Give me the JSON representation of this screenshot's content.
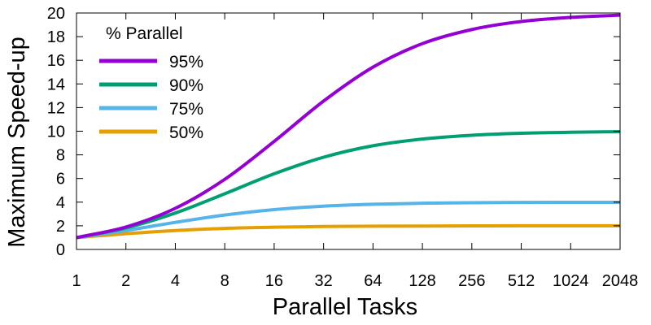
{
  "chart_data": {
    "type": "line",
    "xlabel": "Parallel Tasks",
    "ylabel": "Maximum Speed-up",
    "x_scale": "log2",
    "x_ticks": [
      1,
      2,
      4,
      8,
      16,
      32,
      64,
      128,
      256,
      512,
      1024,
      2048
    ],
    "x_tick_labels": [
      "1",
      "2",
      "4",
      "8",
      "16",
      "32",
      "64",
      "128",
      "256",
      "512",
      "1024",
      "2048"
    ],
    "ylim": [
      0,
      20
    ],
    "y_ticks": [
      0,
      2,
      4,
      6,
      8,
      10,
      12,
      14,
      16,
      18,
      20
    ],
    "y_tick_labels": [
      "0",
      "2",
      "4",
      "6",
      "8",
      "10",
      "12",
      "14",
      "16",
      "18",
      "20"
    ],
    "grid": false,
    "legend": {
      "title": "% Parallel",
      "placement": "top-left"
    },
    "x": [
      1,
      2,
      4,
      8,
      16,
      32,
      64,
      128,
      256,
      512,
      1024,
      2048
    ],
    "series": [
      {
        "name": "95%",
        "color": "#9400d3",
        "values": [
          1.0,
          1.9,
          3.48,
          5.93,
          9.14,
          12.55,
          15.42,
          17.41,
          18.6,
          19.28,
          19.63,
          19.82
        ]
      },
      {
        "name": "90%",
        "color": "#009e73",
        "values": [
          1.0,
          1.82,
          3.08,
          4.71,
          6.4,
          7.8,
          8.77,
          9.34,
          9.66,
          9.83,
          9.91,
          9.96
        ]
      },
      {
        "name": "75%",
        "color": "#56b4e9",
        "values": [
          1.0,
          1.6,
          2.29,
          2.91,
          3.37,
          3.66,
          3.82,
          3.91,
          3.95,
          3.98,
          3.99,
          3.99
        ]
      },
      {
        "name": "50%",
        "color": "#e69f00",
        "values": [
          1.0,
          1.33,
          1.6,
          1.78,
          1.88,
          1.94,
          1.97,
          1.98,
          1.99,
          2.0,
          2.0,
          2.0
        ]
      }
    ]
  }
}
